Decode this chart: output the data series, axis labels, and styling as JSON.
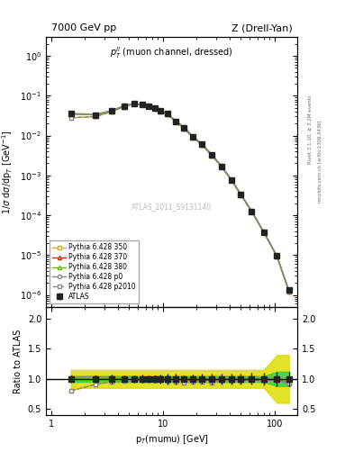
{
  "title_left": "7000 GeV pp",
  "title_right": "Z (Drell-Yan)",
  "annotation": "p$_T^{ll}$ (muon channel, dressed)",
  "watermark": "ATLAS_2011_S9131140",
  "ylabel_main": "1/σ dσ/dp$_T$ [GeV$^{-1}$]",
  "ylabel_ratio": "Ratio to ATLAS",
  "xlabel": "p$_T$(mumu) [GeV]",
  "right_label_top": "Rivet 3.1.10, ≥ 3.2M events",
  "right_label_bot": "mcplots.cern.ch [arXiv:1306.3436]",
  "pt_bins": [
    1.5,
    2.5,
    3.5,
    4.5,
    5.5,
    6.5,
    7.5,
    8.5,
    9.5,
    11.0,
    13.0,
    15.5,
    18.5,
    22.5,
    27.5,
    33.5,
    41.0,
    50.0,
    62.5,
    80.0,
    105.0,
    135.0
  ],
  "atlas_values": [
    0.035,
    0.033,
    0.042,
    0.055,
    0.063,
    0.06,
    0.055,
    0.048,
    0.041,
    0.035,
    0.023,
    0.016,
    0.0095,
    0.006,
    0.0033,
    0.0017,
    0.00078,
    0.00033,
    0.000125,
    3.8e-05,
    9.5e-06,
    1.3e-06
  ],
  "atlas_err_lo": [
    0.002,
    0.002,
    0.003,
    0.003,
    0.004,
    0.004,
    0.003,
    0.003,
    0.003,
    0.003,
    0.002,
    0.001,
    0.0007,
    0.0005,
    0.0003,
    0.00015,
    7e-05,
    3e-05,
    1.2e-05,
    4e-06,
    1.1e-06,
    1.5e-07
  ],
  "atlas_err_hi": [
    0.002,
    0.002,
    0.003,
    0.003,
    0.004,
    0.004,
    0.003,
    0.003,
    0.003,
    0.003,
    0.002,
    0.001,
    0.0007,
    0.0005,
    0.0003,
    0.00015,
    7e-05,
    3e-05,
    1.2e-05,
    4e-06,
    1.1e-06,
    1.5e-07
  ],
  "py350_values": [
    0.028,
    0.03,
    0.04,
    0.053,
    0.062,
    0.059,
    0.054,
    0.047,
    0.04,
    0.034,
    0.022,
    0.015,
    0.009,
    0.0057,
    0.0031,
    0.00165,
    0.00076,
    0.00032,
    0.000122,
    3.7e-05,
    9.3e-06,
    1.2e-06
  ],
  "py370_values": [
    0.035,
    0.033,
    0.042,
    0.055,
    0.063,
    0.06,
    0.055,
    0.048,
    0.041,
    0.035,
    0.0229,
    0.0158,
    0.0094,
    0.0059,
    0.00325,
    0.00168,
    0.00078,
    0.00033,
    0.000124,
    3.78e-05,
    9.4e-06,
    1.2e-06
  ],
  "py380_values": [
    0.035,
    0.033,
    0.042,
    0.055,
    0.063,
    0.06,
    0.055,
    0.048,
    0.041,
    0.035,
    0.023,
    0.016,
    0.0095,
    0.006,
    0.0033,
    0.0017,
    0.00079,
    0.000335,
    0.000127,
    3.85e-05,
    9.6e-06,
    1.25e-06
  ],
  "pyp0_values": [
    0.036,
    0.034,
    0.043,
    0.056,
    0.064,
    0.061,
    0.056,
    0.049,
    0.042,
    0.036,
    0.0235,
    0.0163,
    0.0097,
    0.0061,
    0.00335,
    0.00172,
    0.00079,
    0.000335,
    0.000126,
    3.83e-05,
    9.5e-06,
    1.2e-06
  ],
  "pyp2010_values": [
    0.028,
    0.03,
    0.04,
    0.053,
    0.062,
    0.059,
    0.054,
    0.047,
    0.04,
    0.034,
    0.022,
    0.015,
    0.009,
    0.0057,
    0.0031,
    0.00165,
    0.00076,
    0.00032,
    0.000122,
    3.7e-05,
    9.3e-06,
    1.2e-06
  ],
  "color_350": "#c8b400",
  "color_370": "#cc3300",
  "color_380": "#66bb00",
  "color_p0": "#888888",
  "color_p2010": "#888888",
  "color_atlas": "#222222",
  "band_green": "#44cc44",
  "band_yellow": "#dddd00",
  "ratio_350": [
    0.8,
    0.91,
    0.95,
    0.96,
    0.98,
    0.983,
    0.982,
    0.979,
    0.976,
    0.971,
    0.957,
    0.938,
    0.947,
    0.95,
    0.939,
    0.971,
    0.974,
    0.97,
    0.976,
    0.974,
    0.979,
    0.923
  ],
  "ratio_370": [
    1.0,
    1.0,
    1.0,
    1.0,
    1.0,
    1.0,
    1.0,
    1.0,
    1.0,
    1.0,
    0.996,
    0.988,
    0.989,
    0.983,
    0.985,
    0.988,
    1.0,
    1.0,
    0.992,
    0.995,
    0.989,
    0.923
  ],
  "ratio_380": [
    1.0,
    1.0,
    1.0,
    1.0,
    1.0,
    1.0,
    1.0,
    1.0,
    1.0,
    1.0,
    1.0,
    1.0,
    1.0,
    1.0,
    1.0,
    1.0,
    1.013,
    1.015,
    1.016,
    1.013,
    1.011,
    0.962
  ],
  "ratio_p0": [
    1.03,
    1.03,
    1.024,
    1.018,
    1.016,
    1.017,
    1.018,
    1.021,
    1.024,
    1.029,
    1.022,
    1.019,
    1.021,
    1.017,
    1.015,
    1.012,
    1.013,
    1.015,
    1.008,
    1.008,
    1.0,
    0.923
  ],
  "ratio_p2010": [
    0.8,
    0.91,
    0.95,
    0.96,
    0.98,
    0.983,
    0.982,
    0.979,
    0.976,
    0.971,
    0.957,
    0.938,
    0.947,
    0.95,
    0.939,
    0.971,
    0.974,
    0.97,
    0.976,
    0.974,
    0.979,
    0.923
  ],
  "green_lo": [
    0.95,
    0.95,
    0.95,
    0.95,
    0.95,
    0.95,
    0.95,
    0.95,
    0.95,
    0.95,
    0.95,
    0.95,
    0.95,
    0.95,
    0.95,
    0.95,
    0.95,
    0.95,
    0.95,
    0.95,
    0.88,
    0.88
  ],
  "green_hi": [
    1.05,
    1.05,
    1.05,
    1.05,
    1.05,
    1.05,
    1.05,
    1.05,
    1.05,
    1.05,
    1.05,
    1.05,
    1.05,
    1.05,
    1.05,
    1.05,
    1.05,
    1.05,
    1.05,
    1.05,
    1.12,
    1.12
  ],
  "yellow_lo": [
    0.85,
    0.85,
    0.85,
    0.85,
    0.85,
    0.85,
    0.85,
    0.85,
    0.85,
    0.85,
    0.85,
    0.85,
    0.85,
    0.85,
    0.85,
    0.85,
    0.85,
    0.85,
    0.85,
    0.85,
    0.6,
    0.6
  ],
  "yellow_hi": [
    1.15,
    1.15,
    1.15,
    1.15,
    1.15,
    1.15,
    1.15,
    1.15,
    1.15,
    1.15,
    1.15,
    1.15,
    1.15,
    1.15,
    1.15,
    1.15,
    1.15,
    1.15,
    1.15,
    1.15,
    1.4,
    1.4
  ],
  "xlim": [
    0.9,
    160
  ],
  "ylim_main": [
    5e-07,
    3.0
  ],
  "ylim_ratio": [
    0.4,
    2.2
  ],
  "ratio_yticks": [
    0.5,
    1.0,
    1.5,
    2.0
  ]
}
